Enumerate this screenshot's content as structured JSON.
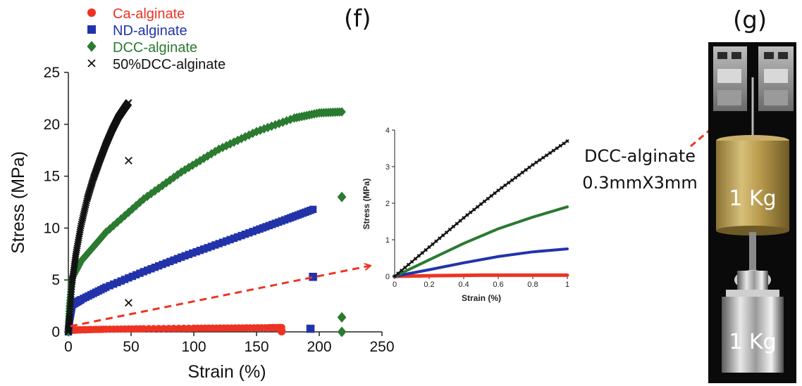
{
  "panels": {
    "f_label": "(f)",
    "g_label": "(g)"
  },
  "colors": {
    "ca": "#ee3322",
    "nd": "#2233aa",
    "dcc": "#2a7a30",
    "dcc50": "#111111",
    "annotation_arrow": "#ee3322"
  },
  "chart_data": [
    {
      "type": "scatter",
      "name": "main-stress-strain",
      "xlabel": "Strain (%)",
      "ylabel": "Stress (MPa)",
      "xlim": [
        0,
        250
      ],
      "ylim": [
        0,
        25
      ],
      "xticks": [
        "0",
        "50",
        "100",
        "150",
        "200",
        "250"
      ],
      "yticks": [
        "0",
        "5",
        "10",
        "15",
        "20",
        "25"
      ],
      "legend_position": "top-left",
      "series": [
        {
          "name": "Ca-alginate",
          "marker": "circle",
          "color": "#ee3322",
          "points": [
            [
              0,
              0
            ],
            [
              2,
              0.15
            ],
            [
              10,
              0.2
            ],
            [
              30,
              0.25
            ],
            [
              60,
              0.3
            ],
            [
              100,
              0.35
            ],
            [
              130,
              0.37
            ],
            [
              160,
              0.4
            ],
            [
              170,
              0.42
            ]
          ],
          "outliers": [
            [
              170,
              0.05
            ]
          ]
        },
        {
          "name": "ND-alginate",
          "marker": "square",
          "color": "#2233aa",
          "points": [
            [
              0,
              0
            ],
            [
              1,
              1.2
            ],
            [
              3,
              2.6
            ],
            [
              10,
              3.1
            ],
            [
              30,
              4.3
            ],
            [
              60,
              5.8
            ],
            [
              90,
              7.2
            ],
            [
              120,
              8.5
            ],
            [
              150,
              9.8
            ],
            [
              175,
              10.9
            ],
            [
              195,
              11.8
            ]
          ],
          "outliers": [
            [
              195,
              5.3
            ],
            [
              193,
              0.3
            ]
          ]
        },
        {
          "name": "DCC-alginate",
          "marker": "diamond",
          "color": "#2a7a30",
          "points": [
            [
              0,
              0
            ],
            [
              1,
              2.5
            ],
            [
              3,
              5.2
            ],
            [
              10,
              6.8
            ],
            [
              30,
              9.6
            ],
            [
              60,
              12.8
            ],
            [
              90,
              15.4
            ],
            [
              120,
              17.6
            ],
            [
              150,
              19.3
            ],
            [
              180,
              20.6
            ],
            [
              200,
              21.1
            ],
            [
              218,
              21.2
            ]
          ],
          "outliers": [
            [
              218,
              13.0
            ],
            [
              218,
              1.4
            ],
            [
              218,
              0.0
            ]
          ]
        },
        {
          "name": "50%DCC-alginate",
          "marker": "x",
          "color": "#111111",
          "points": [
            [
              0,
              0
            ],
            [
              1,
              1.5
            ],
            [
              3,
              4.8
            ],
            [
              6,
              7.5
            ],
            [
              10,
              10.2
            ],
            [
              15,
              12.8
            ],
            [
              20,
              14.8
            ],
            [
              25,
              16.5
            ],
            [
              30,
              18.1
            ],
            [
              35,
              19.5
            ],
            [
              40,
              20.7
            ],
            [
              45,
              21.6
            ],
            [
              48,
              22.1
            ]
          ],
          "outliers": [
            [
              48,
              16.5
            ],
            [
              48,
              2.8
            ]
          ]
        }
      ]
    },
    {
      "type": "line",
      "name": "inset-stress-strain",
      "xlabel": "Strain (%)",
      "ylabel": "Stress (MPa)",
      "xlim": [
        0,
        1
      ],
      "ylim": [
        0,
        4
      ],
      "xticks": [
        "0",
        "0.2",
        "0.4",
        "0.6",
        "0.8",
        "1"
      ],
      "yticks": [
        "0",
        "1",
        "2",
        "3",
        "4"
      ],
      "series": [
        {
          "name": "Ca-alginate",
          "color": "#ee3322",
          "points": [
            [
              0,
              0
            ],
            [
              0.25,
              0.02
            ],
            [
              0.5,
              0.03
            ],
            [
              0.75,
              0.03
            ],
            [
              1,
              0.03
            ]
          ]
        },
        {
          "name": "ND-alginate",
          "color": "#2233aa",
          "points": [
            [
              0,
              0
            ],
            [
              0.2,
              0.18
            ],
            [
              0.4,
              0.37
            ],
            [
              0.6,
              0.54
            ],
            [
              0.8,
              0.67
            ],
            [
              1,
              0.75
            ]
          ]
        },
        {
          "name": "DCC-alginate",
          "color": "#2a7a30",
          "points": [
            [
              0,
              0
            ],
            [
              0.2,
              0.45
            ],
            [
              0.4,
              0.9
            ],
            [
              0.6,
              1.3
            ],
            [
              0.8,
              1.62
            ],
            [
              1,
              1.9
            ]
          ]
        },
        {
          "name": "50%DCC-alginate",
          "color": "#111111",
          "points": [
            [
              0,
              0
            ],
            [
              0.2,
              0.8
            ],
            [
              0.4,
              1.6
            ],
            [
              0.6,
              2.35
            ],
            [
              0.8,
              3.05
            ],
            [
              1,
              3.7
            ]
          ]
        }
      ]
    }
  ],
  "photo": {
    "annotation": "DCC-alginate",
    "dimensions": "0.3mmX3mm",
    "weight_top": "1 Kg",
    "weight_bottom": "1 Kg"
  }
}
